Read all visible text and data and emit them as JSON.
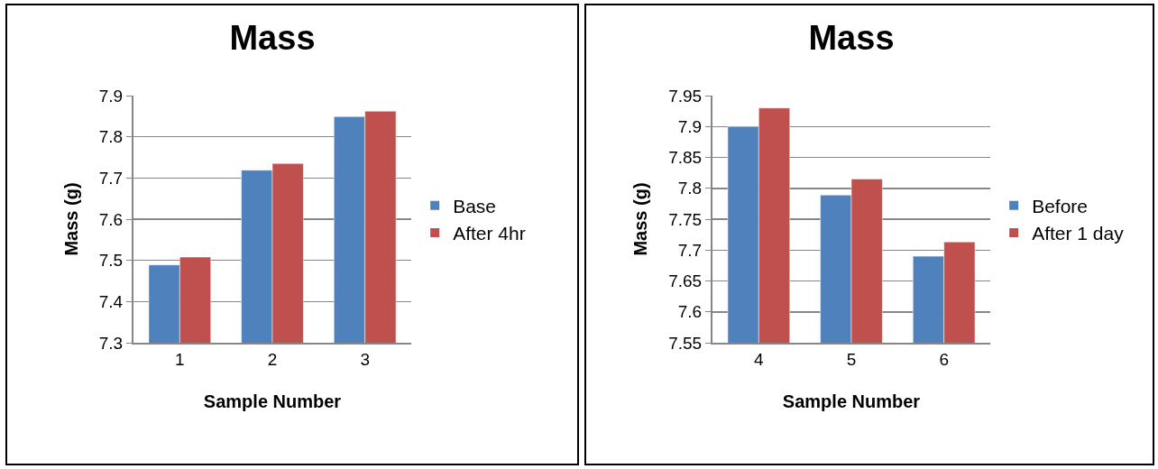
{
  "chart_data": [
    {
      "type": "bar",
      "title": "Mass",
      "xlabel": "Sample Number",
      "ylabel": "Mass (g)",
      "categories": [
        "1",
        "2",
        "3"
      ],
      "series": [
        {
          "name": "Base",
          "color": "#4f81bd",
          "values": [
            7.489,
            7.719,
            7.849
          ]
        },
        {
          "name": "After 4hr",
          "color": "#c0504d",
          "values": [
            7.508,
            7.735,
            7.862
          ]
        }
      ],
      "ylim": [
        7.3,
        7.9
      ],
      "yticks": [
        7.3,
        7.4,
        7.5,
        7.6,
        7.7,
        7.8,
        7.9
      ],
      "grid": "y",
      "legend": "right"
    },
    {
      "type": "bar",
      "title": "Mass",
      "xlabel": "Sample Number",
      "ylabel": "Mass (g)",
      "categories": [
        "4",
        "5",
        "6"
      ],
      "series": [
        {
          "name": "Before",
          "color": "#4f81bd",
          "values": [
            7.9,
            7.789,
            7.69
          ]
        },
        {
          "name": "After 1 day",
          "color": "#c0504d",
          "values": [
            7.93,
            7.815,
            7.713
          ]
        }
      ],
      "ylim": [
        7.55,
        7.95
      ],
      "yticks": [
        7.55,
        7.6,
        7.65,
        7.7,
        7.75,
        7.8,
        7.85,
        7.9,
        7.95
      ],
      "grid": "y",
      "legend": "right"
    }
  ]
}
